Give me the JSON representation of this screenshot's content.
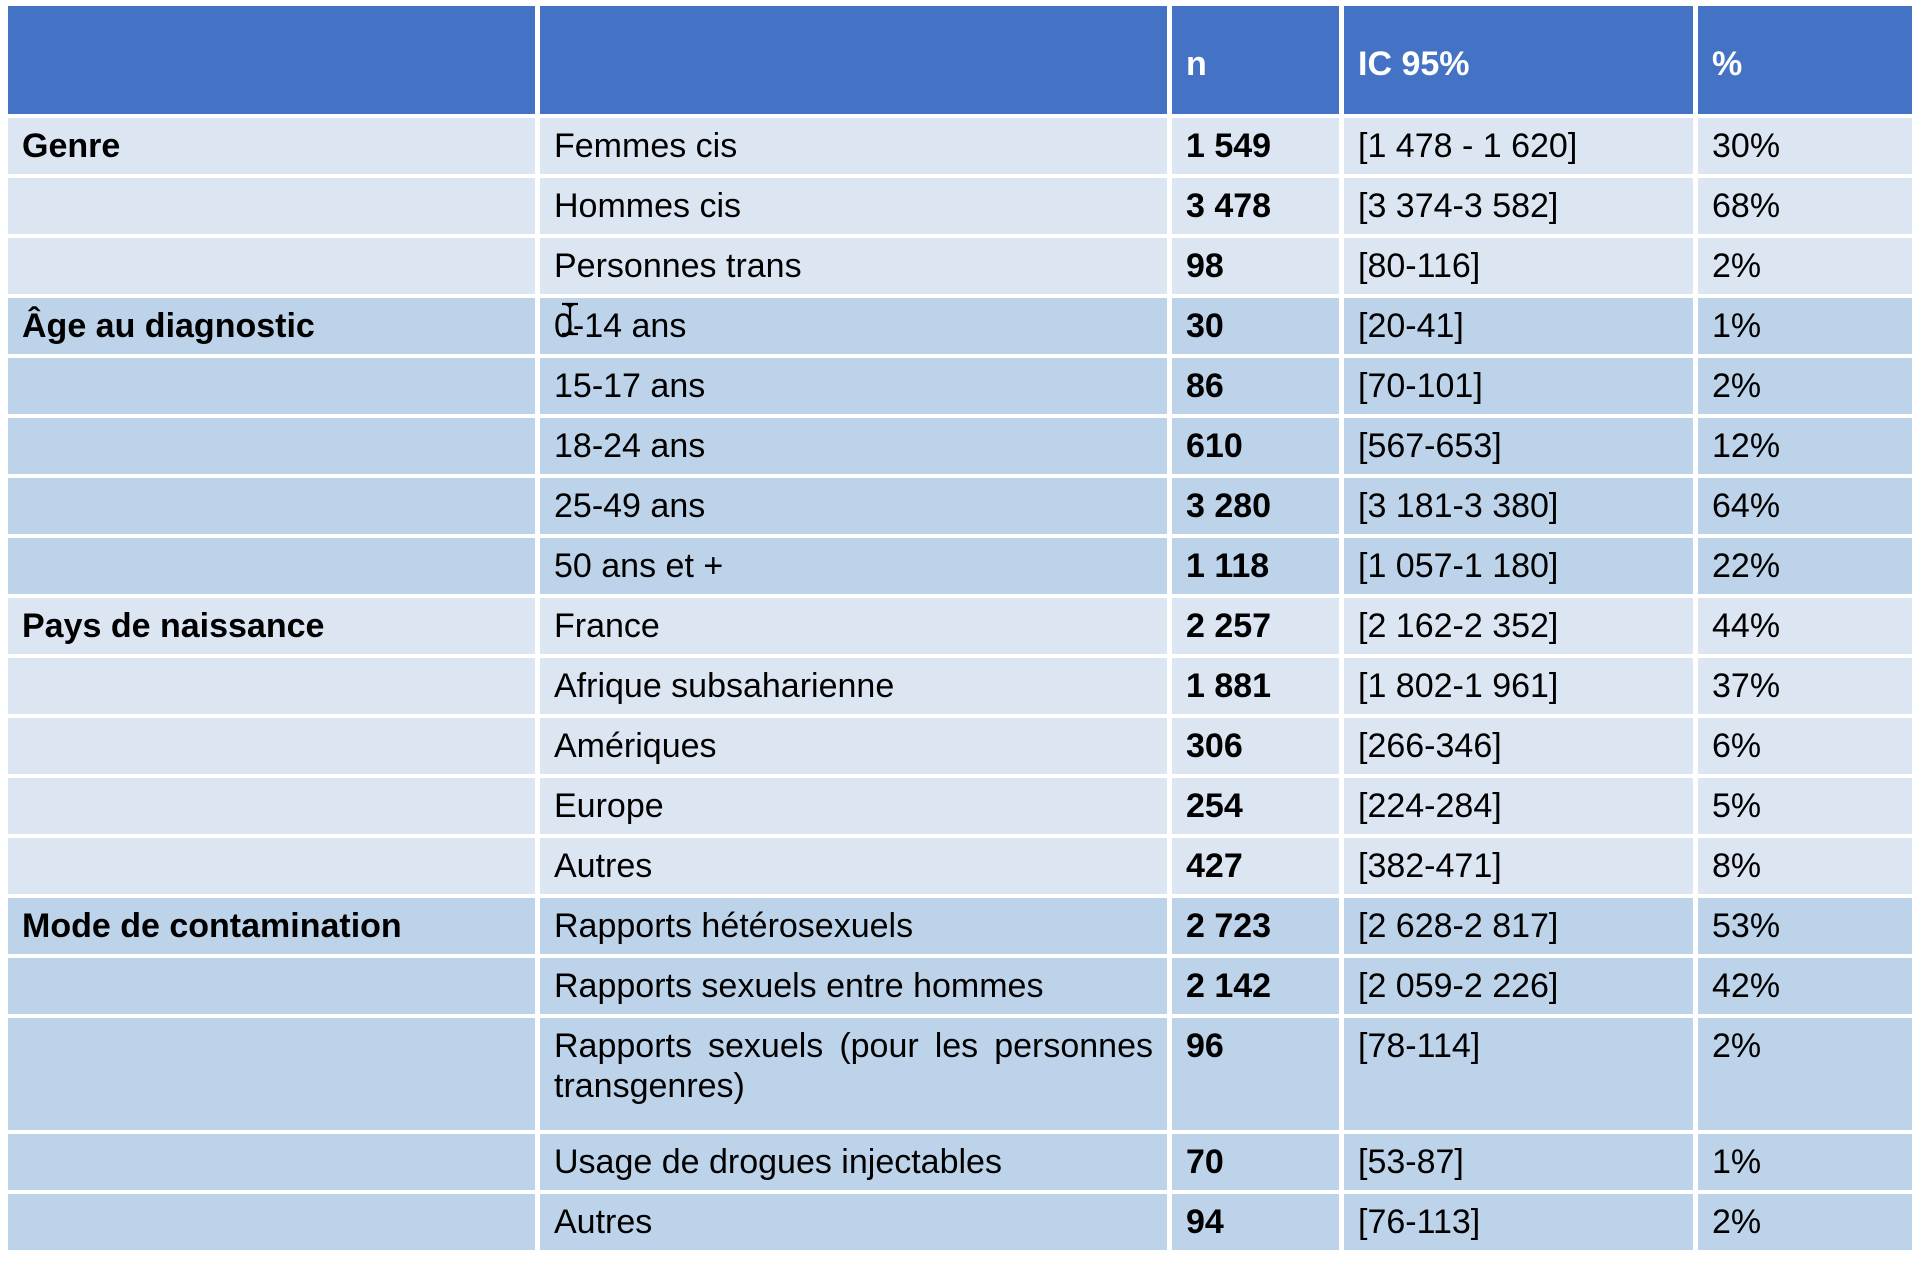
{
  "headers": [
    "",
    "",
    "n",
    "IC 95%",
    "%"
  ],
  "rows": [
    {
      "category": "Genre",
      "sub": "Femmes cis",
      "n": "1 549",
      "ic": "[1 478 - 1 620]",
      "pct": "30%",
      "shade": "light"
    },
    {
      "category": "",
      "sub": "Hommes cis",
      "n": "3 478",
      "ic": "[3 374-3 582]",
      "pct": "68%",
      "shade": "light"
    },
    {
      "category": "",
      "sub": "Personnes trans",
      "n": "98",
      "ic": "[80-116]",
      "pct": "2%",
      "shade": "light"
    },
    {
      "category": "Âge au diagnostic",
      "sub": "0-14 ans",
      "n": "30",
      "ic": "[20-41]",
      "pct": "1%",
      "shade": "dark"
    },
    {
      "category": "",
      "sub": "15-17 ans",
      "n": "86",
      "ic": "[70-101]",
      "pct": "2%",
      "shade": "dark"
    },
    {
      "category": "",
      "sub": "18-24 ans",
      "n": "610",
      "ic": "[567-653]",
      "pct": "12%",
      "shade": "dark"
    },
    {
      "category": "",
      "sub": "25-49 ans",
      "n": "3 280",
      "ic": "[3 181-3 380]",
      "pct": "64%",
      "shade": "dark"
    },
    {
      "category": "",
      "sub": "50 ans et +",
      "n": "1 118",
      "ic": "[1 057-1 180]",
      "pct": "22%",
      "shade": "dark"
    },
    {
      "category": "Pays de naissance",
      "sub": "France",
      "n": "2 257",
      "ic": "[2 162-2 352]",
      "pct": "44%",
      "shade": "light"
    },
    {
      "category": "",
      "sub": "Afrique subsaharienne",
      "n": "1 881",
      "ic": "[1 802-1 961]",
      "pct": "37%",
      "shade": "light"
    },
    {
      "category": "",
      "sub": "Amériques",
      "n": "306",
      "ic": "[266-346]",
      "pct": "6%",
      "shade": "light"
    },
    {
      "category": "",
      "sub": "Europe",
      "n": "254",
      "ic": "[224-284]",
      "pct": "5%",
      "shade": "light"
    },
    {
      "category": "",
      "sub": "Autres",
      "n": "427",
      "ic": "[382-471]",
      "pct": "8%",
      "shade": "light"
    },
    {
      "category": "Mode de contamination",
      "sub": "Rapports hétérosexuels",
      "n": "2 723",
      "ic": "[2 628-2 817]",
      "pct": "53%",
      "shade": "dark"
    },
    {
      "category": "",
      "sub": "Rapports sexuels entre hommes",
      "n": "2 142",
      "ic": "[2 059-2 226]",
      "pct": "42%",
      "shade": "dark"
    },
    {
      "category": "",
      "sub": "Rapports sexuels (pour les personnes transgenres)",
      "n": "96",
      "ic": "[78-114]",
      "pct": "2%",
      "shade": "dark",
      "tall": true
    },
    {
      "category": "",
      "sub": "Usage de drogues injectables",
      "n": "70",
      "ic": "[53-87]",
      "pct": "1%",
      "shade": "dark"
    },
    {
      "category": "",
      "sub": "Autres",
      "n": "94",
      "ic": "[76-113]",
      "pct": "2%",
      "shade": "dark"
    }
  ],
  "colors": {
    "header_bg": "#4472c4",
    "light_row": "#dce6f2",
    "dark_row": "#bdd3ea"
  },
  "cursor_icon": "text-cursor-icon"
}
